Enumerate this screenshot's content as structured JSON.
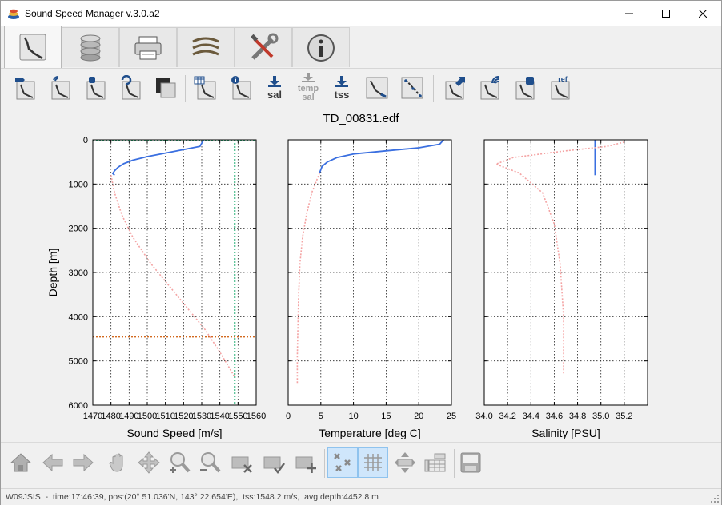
{
  "window": {
    "title": "Sound Speed Manager v.3.0.a2"
  },
  "tabs": [
    {
      "icon": "editor-profile-icon",
      "active": true
    },
    {
      "icon": "database-icon",
      "active": false
    },
    {
      "icon": "server-icon",
      "active": false
    },
    {
      "icon": "refraction-icon",
      "active": false
    },
    {
      "icon": "settings-tools-icon",
      "active": false
    },
    {
      "icon": "info-icon",
      "active": false
    }
  ],
  "toolbar": {
    "sal_label": "sal",
    "temp_sal_label_1": "temp",
    "temp_sal_label_2": "sal",
    "tss_label": "tss",
    "ref_label": "ref"
  },
  "chart_data": [
    {
      "type": "line",
      "title": "TD_00831.edf",
      "xlabel": "Sound Speed [m/s]",
      "ylabel": "Depth [m]",
      "xlim": [
        1470,
        1560
      ],
      "ylim": [
        6000,
        0
      ],
      "xticks": [
        "1470",
        "1480",
        "1490",
        "1500",
        "1510",
        "1520",
        "1530",
        "1540",
        "1550",
        "1560"
      ],
      "yticks": [
        "0",
        "1000",
        "2000",
        "3000",
        "4000",
        "5000",
        "6000"
      ],
      "grid": true,
      "series": [
        {
          "role": "measured",
          "color": "#3a6fe0",
          "x": [
            1531,
            1529,
            1520,
            1510,
            1500,
            1492,
            1487,
            1484,
            1482,
            1481,
            1482
          ],
          "y": [
            0,
            150,
            220,
            300,
            380,
            460,
            540,
            620,
            700,
            760,
            800
          ]
        },
        {
          "role": "extended",
          "color": "#f4a3a3",
          "x": [
            1480,
            1482,
            1486,
            1492,
            1502,
            1512,
            1522,
            1532,
            1540,
            1548
          ],
          "y": [
            800,
            1200,
            1700,
            2200,
            2800,
            3300,
            3800,
            4300,
            4800,
            5350
          ]
        }
      ],
      "hline": {
        "y": 4452.8,
        "color": "#d2691e"
      },
      "vline": {
        "x": 1548.2,
        "color": "#2db37a"
      }
    },
    {
      "type": "line",
      "xlabel": "Temperature [deg C]",
      "xlim": [
        0,
        25
      ],
      "ylim": [
        6000,
        0
      ],
      "xticks": [
        "0",
        "5",
        "10",
        "15",
        "20",
        "25"
      ],
      "grid": true,
      "series": [
        {
          "role": "measured",
          "color": "#3a6fe0",
          "x": [
            23.8,
            23.2,
            20,
            15,
            10,
            7.5,
            6,
            5.2,
            4.8
          ],
          "y": [
            0,
            100,
            180,
            250,
            320,
            400,
            500,
            600,
            750
          ]
        },
        {
          "role": "extended",
          "color": "#f4a3a3",
          "x": [
            4.8,
            3.6,
            2.8,
            2.2,
            1.8,
            1.6,
            1.5,
            1.4,
            1.4
          ],
          "y": [
            750,
            1200,
            1700,
            2200,
            2800,
            3500,
            4200,
            4900,
            5500
          ]
        }
      ]
    },
    {
      "type": "line",
      "xlabel": "Salinity [PSU]",
      "xlim": [
        34.0,
        35.4
      ],
      "ylim": [
        6000,
        0
      ],
      "xticks": [
        "34.0",
        "34.2",
        "34.4",
        "34.6",
        "34.8",
        "35.0",
        "35.2"
      ],
      "grid": true,
      "series": [
        {
          "role": "measured",
          "color": "#3a6fe0",
          "x": [
            34.95,
            34.95
          ],
          "y": [
            0,
            800
          ]
        },
        {
          "role": "extended",
          "color": "#f4a3a3",
          "x": [
            35.2,
            35.05,
            34.7,
            34.25,
            34.1,
            34.3,
            34.5,
            34.6,
            34.65,
            34.68,
            34.68
          ],
          "y": [
            50,
            150,
            250,
            400,
            550,
            750,
            1200,
            1900,
            2800,
            4000,
            5300
          ]
        }
      ]
    }
  ],
  "navbar": {
    "buttons": [
      {
        "icon": "home-icon"
      },
      {
        "icon": "back-arrow-icon"
      },
      {
        "icon": "forward-arrow-icon"
      },
      {
        "icon": "pan-hand-icon"
      },
      {
        "icon": "move-cross-icon"
      },
      {
        "icon": "zoom-in-icon"
      },
      {
        "icon": "zoom-out-icon"
      },
      {
        "icon": "flag-remove-icon"
      },
      {
        "icon": "flag-accept-icon"
      },
      {
        "icon": "flag-add-icon"
      },
      {
        "icon": "show-flagged-icon"
      },
      {
        "icon": "grid-icon"
      },
      {
        "icon": "legend-icon"
      },
      {
        "icon": "scale-icon"
      },
      {
        "icon": "save-figure-icon"
      }
    ]
  },
  "status": {
    "text": "W09JSIS  -  time:17:46:39, pos:(20° 51.036'N, 143° 22.654'E),  tss:1548.2 m/s,  avg.depth:4452.8 m"
  }
}
